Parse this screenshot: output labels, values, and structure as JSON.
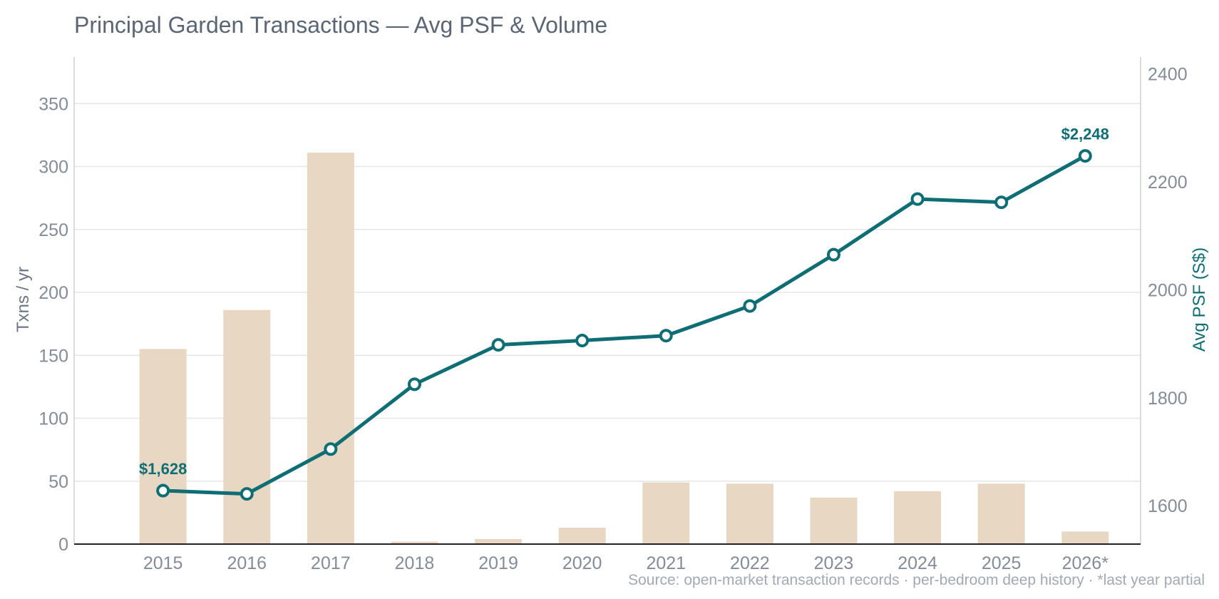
{
  "colors": {
    "bar": "#e8d7c3",
    "line": "#0f6e74",
    "grid": "#e6e6e6",
    "axis": "#222222",
    "frame": "#d0d0d0"
  },
  "chart_data": {
    "type": "bar+line",
    "title": "Principal Garden Transactions — Avg PSF & Volume",
    "categories": [
      "2015",
      "2016",
      "2017",
      "2018",
      "2019",
      "2020",
      "2021",
      "2022",
      "2023",
      "2024",
      "2025",
      "2026*"
    ],
    "series": [
      {
        "kind": "bar",
        "axis": "left",
        "values": [
          155,
          186,
          311,
          2,
          4,
          13,
          49,
          48,
          37,
          42,
          48,
          10
        ]
      },
      {
        "kind": "line",
        "axis": "right",
        "values": [
          1628,
          1622,
          1705,
          1825,
          1898,
          1906,
          1915,
          1970,
          2065,
          2168,
          2162,
          2248
        ]
      }
    ],
    "y_left": {
      "label": "Txns / yr",
      "range": [
        0,
        387
      ],
      "ticks": [
        0,
        50,
        100,
        150,
        200,
        250,
        300,
        350
      ]
    },
    "y_right": {
      "label": "Avg PSF (S$)",
      "range": [
        1529,
        2431
      ],
      "ticks": [
        1600,
        1800,
        2000,
        2200,
        2400
      ]
    },
    "annotations": [
      {
        "index": 0,
        "text": "$1,628"
      },
      {
        "index": 11,
        "text": "$2,248"
      }
    ],
    "source": "Source: open-market transaction records · per-bedroom deep history · *last year partial",
    "grid": true
  }
}
